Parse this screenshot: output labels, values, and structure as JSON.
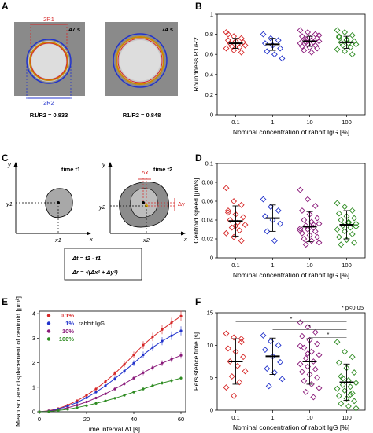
{
  "panelA": {
    "letter": "A",
    "times": [
      "47 s",
      "74 s"
    ],
    "r1_label": "2R1",
    "r2_label": "2R2",
    "ratios": [
      "R1/R2 = 0.833",
      "R1/R2 = 0.848"
    ]
  },
  "panelC": {
    "letter": "C",
    "time1": "time t1",
    "time2": "time t2",
    "x_axis": "x",
    "y_axis": "y",
    "x1": "x1",
    "y1": "y1",
    "x2": "x2",
    "y2": "y2",
    "dx": "Δx",
    "dy": "Δy",
    "eq1": "Δt = t2 - t1",
    "eq2": "Δr = √(Δx² + Δy²)"
  },
  "colors": {
    "red": "#d62828",
    "blue": "#2233cc",
    "purple": "#8a1a7a",
    "green": "#2e8b22"
  },
  "chart_data": [
    {
      "id": "B",
      "letter": "B",
      "type": "scatter",
      "ylabel": "Roundness  R1/R2",
      "xlabel": "Nominal concentration of rabbit IgG  [%]",
      "categories": [
        "0.1",
        "1",
        "10",
        "100"
      ],
      "ylim": [
        0,
        1
      ],
      "yticks": [
        0,
        0.2,
        0.4,
        0.6,
        0.8,
        1
      ],
      "means": [
        0.71,
        0.7,
        0.73,
        0.72
      ],
      "sd": [
        0.05,
        0.06,
        0.05,
        0.06
      ],
      "series": [
        {
          "name": "0.1",
          "values": [
            0.82,
            0.78,
            0.76,
            0.74,
            0.73,
            0.72,
            0.71,
            0.7,
            0.69,
            0.68,
            0.67,
            0.66,
            0.64,
            0.62,
            0.8
          ]
        },
        {
          "name": "1",
          "values": [
            0.8,
            0.76,
            0.74,
            0.71,
            0.69,
            0.66,
            0.63,
            0.6,
            0.56
          ]
        },
        {
          "name": "10",
          "values": [
            0.84,
            0.82,
            0.8,
            0.78,
            0.77,
            0.76,
            0.75,
            0.74,
            0.73,
            0.72,
            0.72,
            0.71,
            0.7,
            0.69,
            0.68,
            0.67,
            0.66,
            0.64,
            0.62,
            0.79,
            0.75
          ]
        },
        {
          "name": "100",
          "values": [
            0.84,
            0.82,
            0.79,
            0.77,
            0.75,
            0.73,
            0.72,
            0.71,
            0.7,
            0.69,
            0.67,
            0.65,
            0.63,
            0.6,
            0.78,
            0.74
          ]
        }
      ]
    },
    {
      "id": "D",
      "letter": "D",
      "type": "scatter",
      "ylabel": "Centroid speed  [μm/s]",
      "xlabel": "Nominal concentration of rabbit IgG  [%]",
      "categories": [
        "0.1",
        "1",
        "10",
        "100"
      ],
      "ylim": [
        0,
        0.1
      ],
      "yticks": [
        0,
        0.02,
        0.04,
        0.06,
        0.08,
        0.1
      ],
      "means": [
        0.039,
        0.042,
        0.033,
        0.035
      ],
      "sd": [
        0.016,
        0.014,
        0.016,
        0.015
      ],
      "series": [
        {
          "name": "0.1",
          "values": [
            0.074,
            0.06,
            0.056,
            0.05,
            0.046,
            0.043,
            0.04,
            0.037,
            0.035,
            0.032,
            0.029,
            0.026,
            0.022,
            0.018,
            0.048,
            0.034
          ]
        },
        {
          "name": "1",
          "values": [
            0.062,
            0.054,
            0.05,
            0.044,
            0.04,
            0.036,
            0.028,
            0.018
          ]
        },
        {
          "name": "10",
          "values": [
            0.072,
            0.062,
            0.055,
            0.05,
            0.046,
            0.042,
            0.04,
            0.038,
            0.036,
            0.034,
            0.032,
            0.031,
            0.03,
            0.028,
            0.026,
            0.024,
            0.022,
            0.02,
            0.018,
            0.016,
            0.014,
            0.035,
            0.029
          ]
        },
        {
          "name": "100",
          "values": [
            0.058,
            0.054,
            0.05,
            0.047,
            0.044,
            0.042,
            0.04,
            0.038,
            0.036,
            0.034,
            0.032,
            0.03,
            0.028,
            0.025,
            0.022,
            0.019,
            0.016,
            0.014,
            0.037,
            0.033
          ]
        }
      ]
    },
    {
      "id": "E",
      "letter": "E",
      "type": "line",
      "ylabel": "Mean square displacement of centroid  [μm²]",
      "xlabel": "Time interval Δt  [s]",
      "xlim": [
        0,
        62
      ],
      "ylim": [
        0,
        4.1
      ],
      "xticks": [
        0,
        20,
        40,
        60
      ],
      "yticks": [
        0,
        1,
        2,
        3,
        4
      ],
      "legend_title": "rabbit IgG",
      "x": [
        0,
        4,
        8,
        12,
        16,
        20,
        24,
        28,
        32,
        36,
        40,
        44,
        48,
        52,
        56,
        60
      ],
      "series": [
        {
          "name": "0.1%",
          "color": "#d62828",
          "values": [
            0,
            0.04,
            0.13,
            0.27,
            0.45,
            0.67,
            0.93,
            1.23,
            1.56,
            1.93,
            2.32,
            2.72,
            3.05,
            3.35,
            3.63,
            3.9
          ]
        },
        {
          "name": "1%",
          "color": "#2233cc",
          "values": [
            0,
            0.03,
            0.11,
            0.23,
            0.38,
            0.57,
            0.8,
            1.06,
            1.35,
            1.66,
            1.98,
            2.32,
            2.62,
            2.88,
            3.1,
            3.3
          ]
        },
        {
          "name": "10%",
          "color": "#8a1a7a",
          "values": [
            0,
            0.02,
            0.08,
            0.16,
            0.27,
            0.4,
            0.56,
            0.73,
            0.93,
            1.14,
            1.37,
            1.59,
            1.8,
            1.98,
            2.14,
            2.3
          ]
        },
        {
          "name": "100%",
          "color": "#2e8b22",
          "values": [
            0,
            0.01,
            0.05,
            0.1,
            0.17,
            0.25,
            0.34,
            0.44,
            0.55,
            0.67,
            0.8,
            0.93,
            1.06,
            1.17,
            1.27,
            1.37
          ]
        }
      ]
    },
    {
      "id": "F",
      "letter": "F",
      "type": "scatter",
      "ylabel": "Persistence time  [s]",
      "xlabel": "Nominal concentration of rabbit IgG  [%]",
      "categories": [
        "0.1",
        "1",
        "10",
        "100"
      ],
      "ylim": [
        0,
        15
      ],
      "yticks": [
        0,
        5,
        10,
        15
      ],
      "means": [
        7.5,
        8.3,
        7.5,
        4.3
      ],
      "sd": [
        3.5,
        2.8,
        3.5,
        2.8
      ],
      "annotation": "* p<0.05",
      "sig_mark": "*",
      "series": [
        {
          "name": "0.1",
          "values": [
            11.8,
            11.2,
            10.5,
            9.5,
            9.0,
            8.2,
            7.5,
            6.8,
            6.0,
            5.2,
            4.3,
            3.5,
            2.2,
            11.0
          ]
        },
        {
          "name": "1",
          "values": [
            11.5,
            10.6,
            10.0,
            9.3,
            8.3,
            7.4,
            6.4,
            5.8,
            4.8,
            3.7
          ]
        },
        {
          "name": "10",
          "values": [
            13.5,
            12.8,
            12.0,
            11.4,
            10.8,
            10.2,
            9.6,
            9.0,
            8.5,
            8.0,
            7.5,
            7.1,
            6.7,
            6.3,
            5.9,
            5.5,
            5.0,
            4.5,
            4.0,
            3.4,
            2.8,
            2.0,
            9.9,
            8.7
          ]
        },
        {
          "name": "100",
          "values": [
            10.5,
            9.0,
            8.2,
            7.3,
            6.5,
            5.8,
            5.2,
            4.6,
            4.2,
            3.9,
            3.6,
            3.3,
            3.0,
            2.6,
            2.2,
            1.8,
            1.4,
            1.0,
            0.6,
            0.3,
            4.9,
            2.4
          ]
        }
      ]
    }
  ]
}
